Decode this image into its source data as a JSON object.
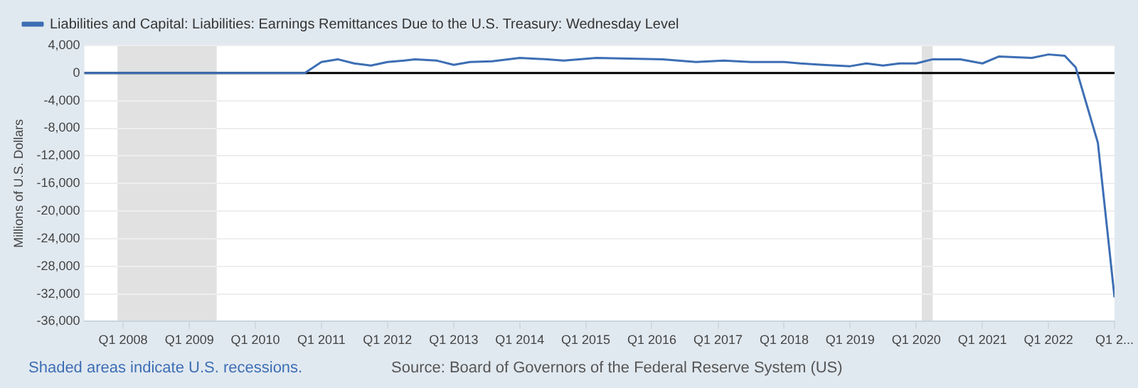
{
  "chart_data": {
    "type": "line",
    "x": [
      "2007-06",
      "2010-10",
      "2011-01",
      "2011-04",
      "2011-07",
      "2011-10",
      "2012-01",
      "2012-04",
      "2012-06",
      "2012-10",
      "2013-01",
      "2013-04",
      "2013-08",
      "2014-01",
      "2014-06",
      "2014-09",
      "2015-03",
      "2016-03",
      "2016-09",
      "2017-02",
      "2017-07",
      "2018-01",
      "2018-04",
      "2018-08",
      "2019-01",
      "2019-04",
      "2019-07",
      "2019-10",
      "2020-01",
      "2020-04",
      "2020-09",
      "2021-01",
      "2021-04",
      "2021-10",
      "2022-01",
      "2022-04",
      "2022-06",
      "2022-10",
      "2023-01"
    ],
    "series": [
      {
        "name": "Liabilities and Capital: Liabilities: Earnings Remittances Due to the U.S. Treasury: Wednesday Level",
        "color": "#3d6eb4",
        "values": [
          0,
          0,
          1600,
          2000,
          1400,
          1100,
          1600,
          1800,
          2000,
          1800,
          1200,
          1600,
          1700,
          2200,
          2000,
          1800,
          2200,
          2000,
          1600,
          1800,
          1600,
          1600,
          1400,
          1200,
          1000,
          1400,
          1100,
          1400,
          1400,
          2000,
          2000,
          1400,
          2400,
          2200,
          2700,
          2500,
          800,
          -10100,
          -32500
        ]
      }
    ],
    "xlim": [
      "2007-06",
      "2023-01"
    ],
    "xticks": [
      {
        "value": "2008-01-01",
        "label": "Q1 2008"
      },
      {
        "value": "2009-01-01",
        "label": "Q1 2009"
      },
      {
        "value": "2010-01-01",
        "label": "Q1 2010"
      },
      {
        "value": "2011-01-01",
        "label": "Q1 2011"
      },
      {
        "value": "2012-01-01",
        "label": "Q1 2012"
      },
      {
        "value": "2013-01-01",
        "label": "Q1 2013"
      },
      {
        "value": "2014-01-01",
        "label": "Q1 2014"
      },
      {
        "value": "2015-01-01",
        "label": "Q1 2015"
      },
      {
        "value": "2016-01-01",
        "label": "Q1 2016"
      },
      {
        "value": "2017-01-01",
        "label": "Q1 2017"
      },
      {
        "value": "2018-01-01",
        "label": "Q1 2018"
      },
      {
        "value": "2019-01-01",
        "label": "Q1 2019"
      },
      {
        "value": "2020-01-01",
        "label": "Q1 2020"
      },
      {
        "value": "2021-01-01",
        "label": "Q1 2021"
      },
      {
        "value": "2022-01-01",
        "label": "Q1 2022"
      },
      {
        "value": "2023-01-01",
        "label": "Q1 2..."
      }
    ],
    "ylim": [
      -36000,
      4000
    ],
    "yticks": [
      {
        "value": 4000,
        "label": "4,000"
      },
      0,
      {
        "value": -4000,
        "label": "-4,000"
      },
      {
        "value": -8000,
        "label": "-8,000"
      },
      {
        "value": -12000,
        "label": "-12,000"
      },
      {
        "value": -16000,
        "label": "-16,000"
      },
      {
        "value": -20000,
        "label": "-20,000"
      },
      {
        "value": -24000,
        "label": "-24,000"
      },
      {
        "value": -28000,
        "label": "-28,000"
      },
      {
        "value": -32000,
        "label": "-32,000"
      },
      {
        "value": -36000,
        "label": "-36,000"
      }
    ],
    "ylabel": "Millions of U.S. Dollars",
    "bands": [
      {
        "axis": "x",
        "from": "2007-12",
        "to": "2009-06",
        "color": "#e1e1e1"
      },
      {
        "axis": "x",
        "from": "2020-02",
        "to": "2020-04",
        "color": "#e1e1e1"
      }
    ],
    "ref_lines": [
      {
        "axis": "y",
        "value": 0,
        "color": "#000000"
      }
    ],
    "annotations": [
      "Shaded areas indicate U.S. recessions.",
      "Source: Board of Governors of the Federal Reserve System (US)"
    ],
    "grid": "y",
    "legend": "top left",
    "marker": "none",
    "line_style": "solid"
  }
}
